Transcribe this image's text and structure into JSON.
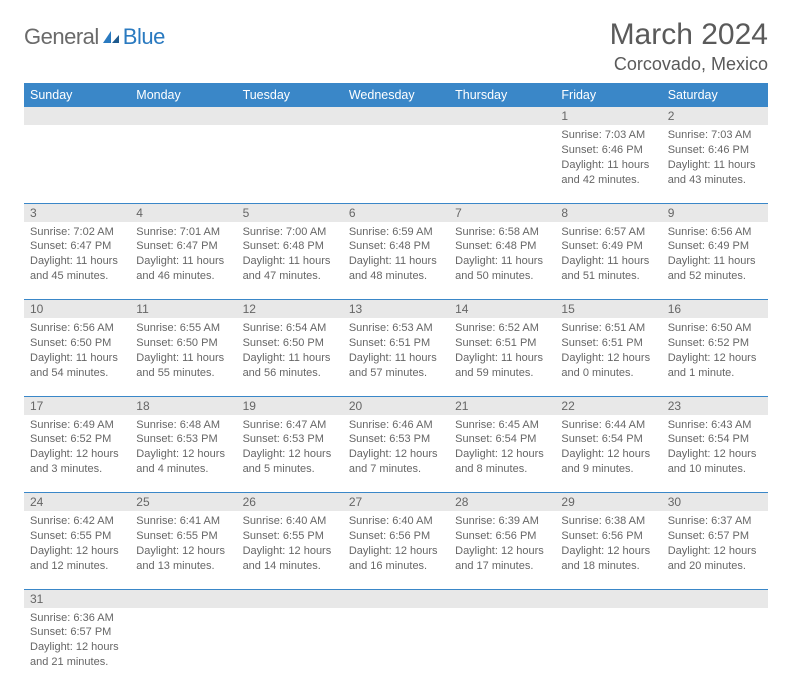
{
  "brand": {
    "text1": "General",
    "text2": "Blue",
    "icon_color": "#2a7ac0"
  },
  "title": "March 2024",
  "location": "Corcovado, Mexico",
  "colors": {
    "header_bg": "#3a87c8",
    "header_text": "#ffffff",
    "daynum_bg": "#e8e8e8",
    "row_border": "#3a87c8",
    "body_text": "#666666"
  },
  "day_headers": [
    "Sunday",
    "Monday",
    "Tuesday",
    "Wednesday",
    "Thursday",
    "Friday",
    "Saturday"
  ],
  "weeks": [
    [
      null,
      null,
      null,
      null,
      null,
      {
        "n": "1",
        "sunrise": "7:03 AM",
        "sunset": "6:46 PM",
        "day_h": 11,
        "day_m": 42
      },
      {
        "n": "2",
        "sunrise": "7:03 AM",
        "sunset": "6:46 PM",
        "day_h": 11,
        "day_m": 43
      }
    ],
    [
      {
        "n": "3",
        "sunrise": "7:02 AM",
        "sunset": "6:47 PM",
        "day_h": 11,
        "day_m": 45
      },
      {
        "n": "4",
        "sunrise": "7:01 AM",
        "sunset": "6:47 PM",
        "day_h": 11,
        "day_m": 46
      },
      {
        "n": "5",
        "sunrise": "7:00 AM",
        "sunset": "6:48 PM",
        "day_h": 11,
        "day_m": 47
      },
      {
        "n": "6",
        "sunrise": "6:59 AM",
        "sunset": "6:48 PM",
        "day_h": 11,
        "day_m": 48
      },
      {
        "n": "7",
        "sunrise": "6:58 AM",
        "sunset": "6:48 PM",
        "day_h": 11,
        "day_m": 50
      },
      {
        "n": "8",
        "sunrise": "6:57 AM",
        "sunset": "6:49 PM",
        "day_h": 11,
        "day_m": 51
      },
      {
        "n": "9",
        "sunrise": "6:56 AM",
        "sunset": "6:49 PM",
        "day_h": 11,
        "day_m": 52
      }
    ],
    [
      {
        "n": "10",
        "sunrise": "6:56 AM",
        "sunset": "6:50 PM",
        "day_h": 11,
        "day_m": 54
      },
      {
        "n": "11",
        "sunrise": "6:55 AM",
        "sunset": "6:50 PM",
        "day_h": 11,
        "day_m": 55
      },
      {
        "n": "12",
        "sunrise": "6:54 AM",
        "sunset": "6:50 PM",
        "day_h": 11,
        "day_m": 56
      },
      {
        "n": "13",
        "sunrise": "6:53 AM",
        "sunset": "6:51 PM",
        "day_h": 11,
        "day_m": 57
      },
      {
        "n": "14",
        "sunrise": "6:52 AM",
        "sunset": "6:51 PM",
        "day_h": 11,
        "day_m": 59
      },
      {
        "n": "15",
        "sunrise": "6:51 AM",
        "sunset": "6:51 PM",
        "day_h": 12,
        "day_m": 0
      },
      {
        "n": "16",
        "sunrise": "6:50 AM",
        "sunset": "6:52 PM",
        "day_h": 12,
        "day_m": 1
      }
    ],
    [
      {
        "n": "17",
        "sunrise": "6:49 AM",
        "sunset": "6:52 PM",
        "day_h": 12,
        "day_m": 3
      },
      {
        "n": "18",
        "sunrise": "6:48 AM",
        "sunset": "6:53 PM",
        "day_h": 12,
        "day_m": 4
      },
      {
        "n": "19",
        "sunrise": "6:47 AM",
        "sunset": "6:53 PM",
        "day_h": 12,
        "day_m": 5
      },
      {
        "n": "20",
        "sunrise": "6:46 AM",
        "sunset": "6:53 PM",
        "day_h": 12,
        "day_m": 7
      },
      {
        "n": "21",
        "sunrise": "6:45 AM",
        "sunset": "6:54 PM",
        "day_h": 12,
        "day_m": 8
      },
      {
        "n": "22",
        "sunrise": "6:44 AM",
        "sunset": "6:54 PM",
        "day_h": 12,
        "day_m": 9
      },
      {
        "n": "23",
        "sunrise": "6:43 AM",
        "sunset": "6:54 PM",
        "day_h": 12,
        "day_m": 10
      }
    ],
    [
      {
        "n": "24",
        "sunrise": "6:42 AM",
        "sunset": "6:55 PM",
        "day_h": 12,
        "day_m": 12
      },
      {
        "n": "25",
        "sunrise": "6:41 AM",
        "sunset": "6:55 PM",
        "day_h": 12,
        "day_m": 13
      },
      {
        "n": "26",
        "sunrise": "6:40 AM",
        "sunset": "6:55 PM",
        "day_h": 12,
        "day_m": 14
      },
      {
        "n": "27",
        "sunrise": "6:40 AM",
        "sunset": "6:56 PM",
        "day_h": 12,
        "day_m": 16
      },
      {
        "n": "28",
        "sunrise": "6:39 AM",
        "sunset": "6:56 PM",
        "day_h": 12,
        "day_m": 17
      },
      {
        "n": "29",
        "sunrise": "6:38 AM",
        "sunset": "6:56 PM",
        "day_h": 12,
        "day_m": 18
      },
      {
        "n": "30",
        "sunrise": "6:37 AM",
        "sunset": "6:57 PM",
        "day_h": 12,
        "day_m": 20
      }
    ],
    [
      {
        "n": "31",
        "sunrise": "6:36 AM",
        "sunset": "6:57 PM",
        "day_h": 12,
        "day_m": 21
      },
      null,
      null,
      null,
      null,
      null,
      null
    ]
  ],
  "labels": {
    "sunrise": "Sunrise:",
    "sunset": "Sunset:",
    "daylight_prefix": "Daylight:",
    "hours_word": "hours",
    "and_word": "and",
    "minute_word": "minute.",
    "minutes_word": "minutes."
  }
}
